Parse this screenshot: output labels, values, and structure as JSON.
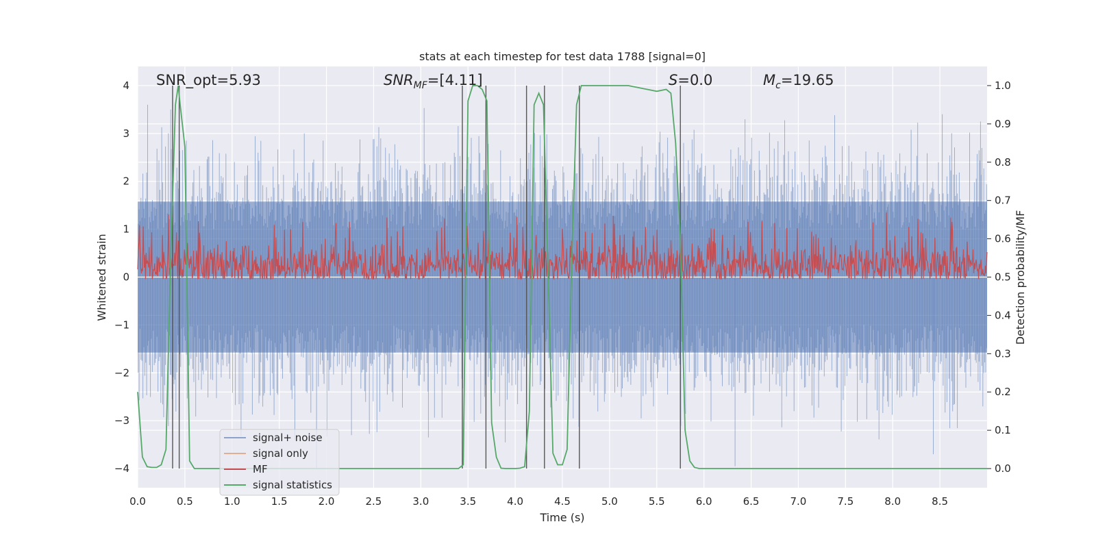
{
  "chart_data": {
    "type": "line",
    "title": "stats at each timestep for test data 1788 [signal=0]",
    "xlabel": "Time (s)",
    "ylabel_left": "Whitened strain",
    "ylabel_right": "Detection probability/MF",
    "xlim": [
      0,
      9.0
    ],
    "ylim_left": [
      -4.4,
      4.4
    ],
    "ylim_right": [
      -0.05,
      1.05
    ],
    "xticks": [
      "0.0",
      "0.5",
      "1.0",
      "1.5",
      "2.0",
      "2.5",
      "3.0",
      "3.5",
      "4.0",
      "4.5",
      "5.0",
      "5.5",
      "6.0",
      "6.5",
      "7.0",
      "7.5",
      "8.0",
      "8.5"
    ],
    "xtick_values": [
      0,
      0.5,
      1,
      1.5,
      2,
      2.5,
      3,
      3.5,
      4,
      4.5,
      5,
      5.5,
      6,
      6.5,
      7,
      7.5,
      8,
      8.5
    ],
    "yticks_left": [
      "4",
      "3",
      "2",
      "1",
      "0",
      "−1",
      "−2",
      "−3",
      "−4"
    ],
    "ytick_values_left": [
      4,
      3,
      2,
      1,
      0,
      -1,
      -2,
      -3,
      -4
    ],
    "yticks_right": [
      "1.0",
      "0.9",
      "0.8",
      "0.7",
      "0.6",
      "0.5",
      "0.4",
      "0.3",
      "0.2",
      "0.1",
      "0.0"
    ],
    "ytick_values_right": [
      1.0,
      0.9,
      0.8,
      0.7,
      0.6,
      0.5,
      0.4,
      0.3,
      0.2,
      0.1,
      0.0
    ],
    "annotations": {
      "snr_opt": "SNR_opt=5.93",
      "snr_mf": "SNR",
      "snr_mf_sub": "MF",
      "snr_mf_value": "=[4.11]",
      "s_label": "S",
      "s_value": "=0.0",
      "mc_label": "M",
      "mc_sub": "c",
      "mc_value": "=19.65"
    },
    "noise": {
      "name": "signal+ noise",
      "color": "#4c72b0",
      "samples": 900,
      "band_sigma": 0.75,
      "max_abs": 4.0,
      "extreme_peaks": [
        [
          0.105,
          3.6
        ],
        [
          0.35,
          3.5
        ],
        [
          6.33,
          -3.95
        ],
        [
          8.43,
          -3.7
        ],
        [
          8.93,
          3.25
        ],
        [
          3.08,
          -3.35
        ]
      ]
    },
    "signal_only": {
      "name": "signal only",
      "color": "#dd8452",
      "values": []
    },
    "mf": {
      "name": "MF",
      "color": "#c44e52",
      "center": 0.53,
      "spread": 0.045
    },
    "signal_statistics": {
      "name": "signal statistics",
      "color": "#55a868",
      "x": [
        0.0,
        0.05,
        0.1,
        0.15,
        0.2,
        0.25,
        0.3,
        0.35,
        0.4,
        0.43,
        0.45,
        0.5,
        0.55,
        0.6,
        0.65,
        0.7,
        0.8,
        1.0,
        2.0,
        3.0,
        3.4,
        3.45,
        3.5,
        3.55,
        3.6,
        3.65,
        3.7,
        3.75,
        3.8,
        3.85,
        3.9,
        4.0,
        4.05,
        4.1,
        4.15,
        4.2,
        4.25,
        4.3,
        4.35,
        4.4,
        4.45,
        4.5,
        4.55,
        4.6,
        4.65,
        4.7,
        4.75,
        4.8,
        4.85,
        4.9,
        5.0,
        5.2,
        5.3,
        5.4,
        5.5,
        5.6,
        5.65,
        5.7,
        5.75,
        5.8,
        5.85,
        5.9,
        5.95,
        6.0,
        6.05,
        6.2,
        7.0,
        8.0,
        9.0
      ],
      "y": [
        0.2,
        0.03,
        0.005,
        0.003,
        0.003,
        0.01,
        0.05,
        0.55,
        0.95,
        1.0,
        0.95,
        0.84,
        0.02,
        0.0,
        0.0,
        0.0,
        0.0,
        0.0,
        0.0,
        0.0,
        0.0,
        0.01,
        0.96,
        1.0,
        1.0,
        0.99,
        0.96,
        0.12,
        0.03,
        0.001,
        0.0,
        0.0,
        0.001,
        0.005,
        0.15,
        0.95,
        0.98,
        0.95,
        0.5,
        0.04,
        0.01,
        0.01,
        0.05,
        0.55,
        0.95,
        1.0,
        1.0,
        1.0,
        1.0,
        1.0,
        1.0,
        1.0,
        0.995,
        0.99,
        0.985,
        0.99,
        0.98,
        0.85,
        0.6,
        0.1,
        0.02,
        0.003,
        0.0,
        0.0,
        0.0,
        0.0,
        0.0,
        0.0,
        0.0
      ]
    },
    "vertical_markers": [
      0.37,
      0.44,
      3.44,
      3.69,
      4.12,
      4.31,
      4.68,
      5.75
    ],
    "legend": {
      "location": "lower-left",
      "entries": [
        "signal+ noise",
        "signal only",
        "MF",
        "signal statistics"
      ]
    },
    "colors": {
      "plot_background": "#eaeaf2",
      "grid": "#ffffff",
      "marker_lines": "#555555"
    }
  }
}
